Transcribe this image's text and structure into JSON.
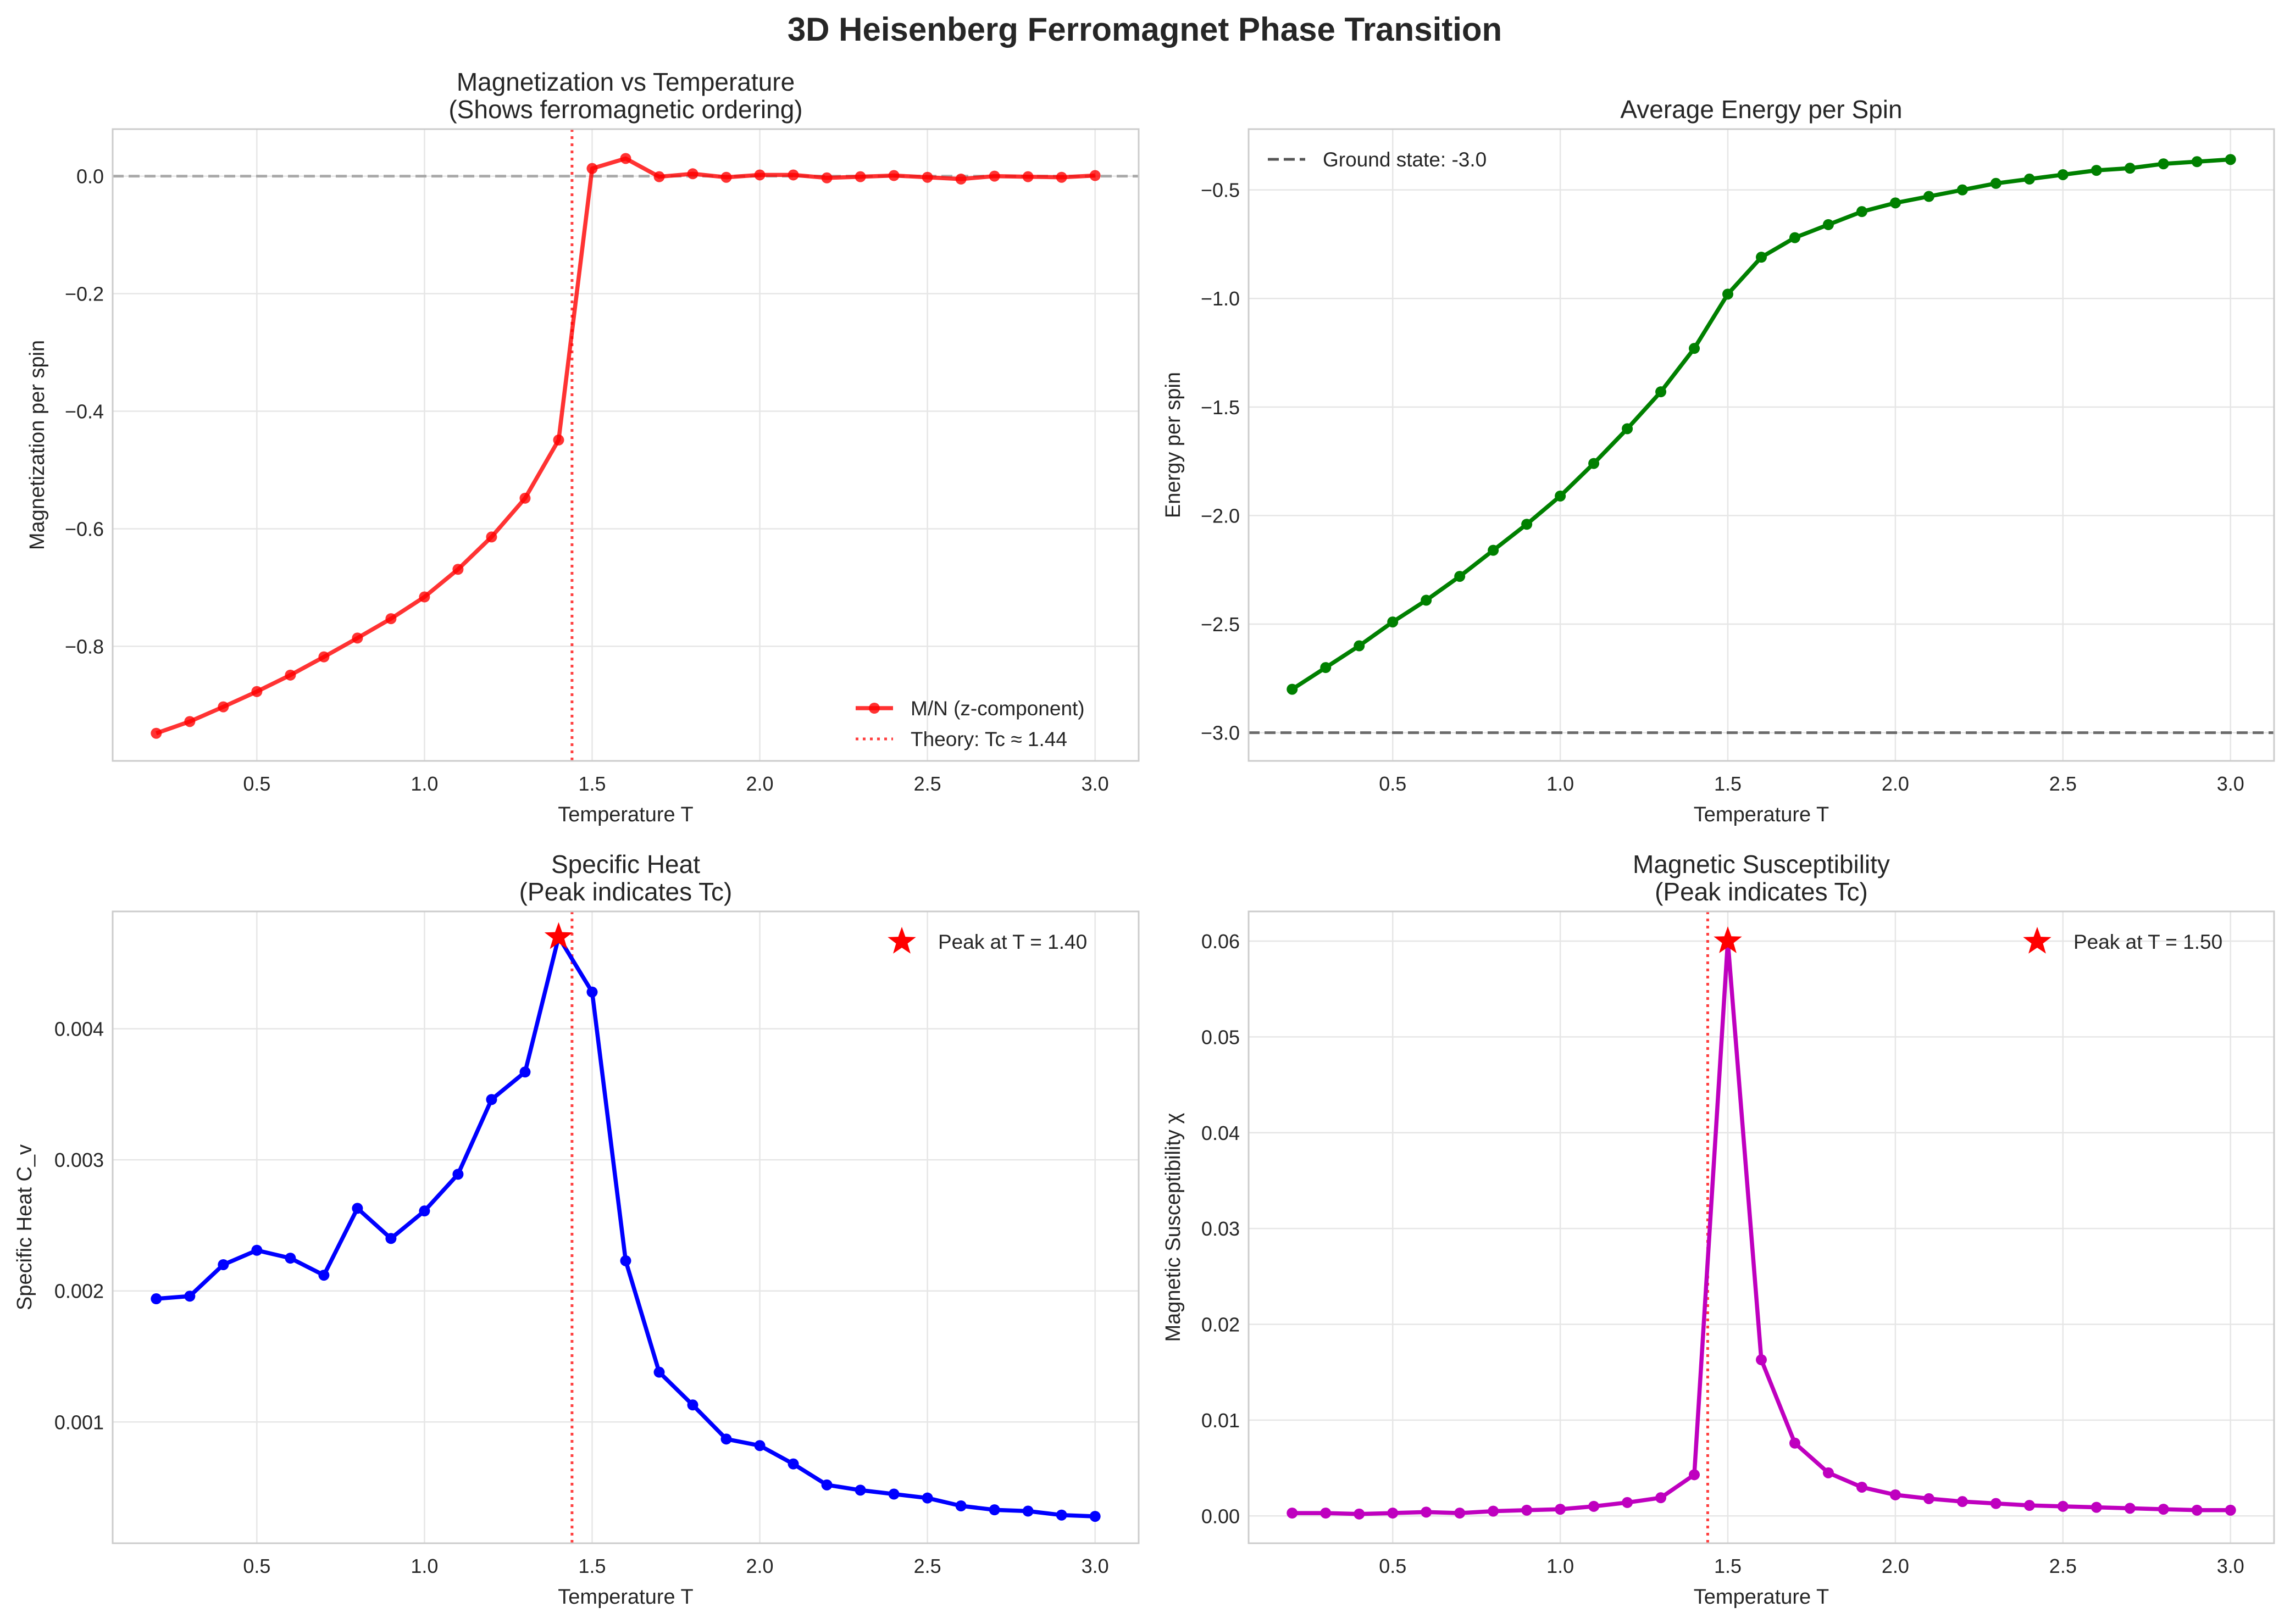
{
  "figure": {
    "suptitle": "3D Heisenberg Ferromagnet Phase Transition",
    "tc_theory": 1.44,
    "colors": {
      "mag": "#ff0000",
      "energy": "#008000",
      "heat": "#0000ff",
      "sus": "#bf00bf",
      "tc_line": "#ff0000",
      "star": "#ff0000",
      "ground": "#555555",
      "zero": "#999999",
      "grid": "#e6e6e6",
      "frame": "#cccccc"
    }
  },
  "chart_data": [
    {
      "id": "mag",
      "type": "line",
      "title": "Magnetization vs Temperature\n(Shows ferromagnetic ordering)",
      "xlabel": "Temperature T",
      "ylabel": "Magnetization per spin",
      "xlim": [
        0.07,
        3.13
      ],
      "ylim": [
        -0.995,
        0.08
      ],
      "xticks": [
        0.5,
        1.0,
        1.5,
        2.0,
        2.5,
        3.0
      ],
      "xtick_labels": [
        "0.5",
        "1.0",
        "1.5",
        "2.0",
        "2.5",
        "3.0"
      ],
      "yticks": [
        0.0,
        -0.2,
        -0.4,
        -0.6,
        -0.8
      ],
      "ytick_labels": [
        "0.0",
        "−0.2",
        "−0.4",
        "−0.6",
        "−0.8"
      ],
      "grid": true,
      "legend_position": "lower-right",
      "x": [
        0.2,
        0.3,
        0.4,
        0.5,
        0.6,
        0.7,
        0.8,
        0.9,
        1.0,
        1.1,
        1.2,
        1.3,
        1.4,
        1.5,
        1.6,
        1.7,
        1.8,
        1.9,
        2.0,
        2.1,
        2.2,
        2.3,
        2.4,
        2.5,
        2.6,
        2.7,
        2.8,
        2.9,
        3.0
      ],
      "series": [
        {
          "name": "M/N (z-component)",
          "color_key": "mag",
          "marker": "circle",
          "alpha": 0.8,
          "values": [
            -0.948,
            -0.928,
            -0.903,
            -0.877,
            -0.849,
            -0.818,
            -0.786,
            -0.753,
            -0.716,
            -0.669,
            -0.614,
            -0.548,
            -0.449,
            0.013,
            0.03,
            -0.001,
            0.004,
            -0.002,
            0.002,
            0.002,
            -0.003,
            -0.001,
            0.001,
            -0.002,
            -0.005,
            0.0,
            -0.001,
            -0.002,
            0.001
          ]
        }
      ],
      "hlines": [
        {
          "y": 0.0,
          "style": "dashed",
          "color_key": "zero",
          "label": ""
        }
      ],
      "vlines": [
        {
          "x": 1.44,
          "style": "dotted",
          "color_key": "tc_line",
          "label": "Theory: Tc ≈ 1.44"
        }
      ],
      "legend": [
        {
          "label": "M/N (z-component)",
          "kind": "line-marker",
          "color_key": "mag"
        },
        {
          "label": "Theory: Tc ≈ 1.44",
          "kind": "dotted",
          "color_key": "tc_line"
        }
      ]
    },
    {
      "id": "energy",
      "type": "line",
      "title": "Average Energy per Spin",
      "xlabel": "Temperature T",
      "ylabel": "Energy per spin",
      "xlim": [
        0.07,
        3.13
      ],
      "ylim": [
        -3.13,
        -0.22
      ],
      "xticks": [
        0.5,
        1.0,
        1.5,
        2.0,
        2.5,
        3.0
      ],
      "xtick_labels": [
        "0.5",
        "1.0",
        "1.5",
        "2.0",
        "2.5",
        "3.0"
      ],
      "yticks": [
        -0.5,
        -1.0,
        -1.5,
        -2.0,
        -2.5,
        -3.0
      ],
      "ytick_labels": [
        "−0.5",
        "−1.0",
        "−1.5",
        "−2.0",
        "−2.5",
        "−3.0"
      ],
      "grid": true,
      "legend_position": "upper-left",
      "x": [
        0.2,
        0.3,
        0.4,
        0.5,
        0.6,
        0.7,
        0.8,
        0.9,
        1.0,
        1.1,
        1.2,
        1.3,
        1.4,
        1.5,
        1.6,
        1.7,
        1.8,
        1.9,
        2.0,
        2.1,
        2.2,
        2.3,
        2.4,
        2.5,
        2.6,
        2.7,
        2.8,
        2.9,
        3.0
      ],
      "series": [
        {
          "name": "",
          "color_key": "energy",
          "marker": "circle",
          "alpha": 1,
          "values": [
            -2.8,
            -2.7,
            -2.6,
            -2.49,
            -2.39,
            -2.28,
            -2.16,
            -2.04,
            -1.91,
            -1.76,
            -1.6,
            -1.43,
            -1.23,
            -0.98,
            -0.81,
            -0.72,
            -0.66,
            -0.6,
            -0.56,
            -0.53,
            -0.5,
            -0.47,
            -0.45,
            -0.43,
            -0.41,
            -0.4,
            -0.38,
            -0.37,
            -0.36
          ]
        }
      ],
      "hlines": [
        {
          "y": -3.0,
          "style": "dashed",
          "color_key": "ground",
          "label": "Ground state: -3.0"
        }
      ],
      "vlines": [],
      "legend": [
        {
          "label": "Ground state: -3.0",
          "kind": "dashed",
          "color_key": "ground"
        }
      ]
    },
    {
      "id": "heat",
      "type": "line",
      "title": "Specific Heat\n(Peak indicates Tc)",
      "xlabel": "Temperature T",
      "ylabel": "Specific Heat C_v",
      "xlim": [
        0.07,
        3.13
      ],
      "ylim": [
        7.5e-05,
        0.004895
      ],
      "xticks": [
        0.5,
        1.0,
        1.5,
        2.0,
        2.5,
        3.0
      ],
      "xtick_labels": [
        "0.5",
        "1.0",
        "1.5",
        "2.0",
        "2.5",
        "3.0"
      ],
      "yticks": [
        0.004,
        0.003,
        0.002,
        0.001
      ],
      "ytick_labels": [
        "0.004",
        "0.003",
        "0.002",
        "0.001"
      ],
      "grid": true,
      "legend_position": "upper-right",
      "x": [
        0.2,
        0.3,
        0.4,
        0.5,
        0.6,
        0.7,
        0.8,
        0.9,
        1.0,
        1.1,
        1.2,
        1.3,
        1.4,
        1.5,
        1.6,
        1.7,
        1.8,
        1.9,
        2.0,
        2.1,
        2.2,
        2.3,
        2.4,
        2.5,
        2.6,
        2.7,
        2.8,
        2.9,
        3.0
      ],
      "series": [
        {
          "name": "",
          "color_key": "heat",
          "marker": "circle",
          "alpha": 1,
          "values": [
            0.00194,
            0.00196,
            0.0022,
            0.00231,
            0.00225,
            0.00212,
            0.00263,
            0.0024,
            0.00261,
            0.00289,
            0.00346,
            0.00367,
            0.0047,
            0.00428,
            0.00223,
            0.00138,
            0.00113,
            0.00087,
            0.00082,
            0.00068,
            0.00052,
            0.00048,
            0.00045,
            0.00042,
            0.00036,
            0.00033,
            0.00032,
            0.00029,
            0.00028
          ]
        }
      ],
      "hlines": [],
      "vlines": [
        {
          "x": 1.44,
          "style": "dotted",
          "color_key": "tc_line",
          "label": ""
        }
      ],
      "peak": {
        "x": 1.4,
        "y": 0.0047,
        "label": "Peak at T = 1.40"
      },
      "legend": [
        {
          "label": "Peak at T = 1.40",
          "kind": "star",
          "color_key": "star"
        }
      ]
    },
    {
      "id": "sus",
      "type": "line",
      "title": "Magnetic Susceptibility\n(Peak indicates Tc)",
      "xlabel": "Temperature T",
      "ylabel": "Magnetic Susceptibility χ",
      "xlim": [
        0.07,
        3.13
      ],
      "ylim": [
        -0.00285,
        0.0631
      ],
      "xticks": [
        0.5,
        1.0,
        1.5,
        2.0,
        2.5,
        3.0
      ],
      "xtick_labels": [
        "0.5",
        "1.0",
        "1.5",
        "2.0",
        "2.5",
        "3.0"
      ],
      "yticks": [
        0.0,
        0.01,
        0.02,
        0.03,
        0.04,
        0.05,
        0.06
      ],
      "ytick_labels": [
        "0.00",
        "0.01",
        "0.02",
        "0.03",
        "0.04",
        "0.05",
        "0.06"
      ],
      "grid": true,
      "legend_position": "upper-right",
      "x": [
        0.2,
        0.3,
        0.4,
        0.5,
        0.6,
        0.7,
        0.8,
        0.9,
        1.0,
        1.1,
        1.2,
        1.3,
        1.4,
        1.5,
        1.6,
        1.7,
        1.8,
        1.9,
        2.0,
        2.1,
        2.2,
        2.3,
        2.4,
        2.5,
        2.6,
        2.7,
        2.8,
        2.9,
        3.0
      ],
      "series": [
        {
          "name": "",
          "color_key": "sus",
          "marker": "circle",
          "alpha": 1,
          "values": [
            0.0003,
            0.0003,
            0.0002,
            0.0003,
            0.0004,
            0.0003,
            0.0005,
            0.0006,
            0.0007,
            0.001,
            0.0014,
            0.0019,
            0.0043,
            0.06,
            0.0163,
            0.0076,
            0.0045,
            0.003,
            0.0022,
            0.0018,
            0.0015,
            0.0013,
            0.0011,
            0.001,
            0.0009,
            0.0008,
            0.0007,
            0.0006,
            0.0006
          ]
        }
      ],
      "hlines": [],
      "vlines": [
        {
          "x": 1.44,
          "style": "dotted",
          "color_key": "tc_line",
          "label": ""
        }
      ],
      "peak": {
        "x": 1.5,
        "y": 0.06,
        "label": "Peak at T = 1.50"
      },
      "legend": [
        {
          "label": "Peak at T = 1.50",
          "kind": "star",
          "color_key": "star"
        }
      ]
    }
  ]
}
